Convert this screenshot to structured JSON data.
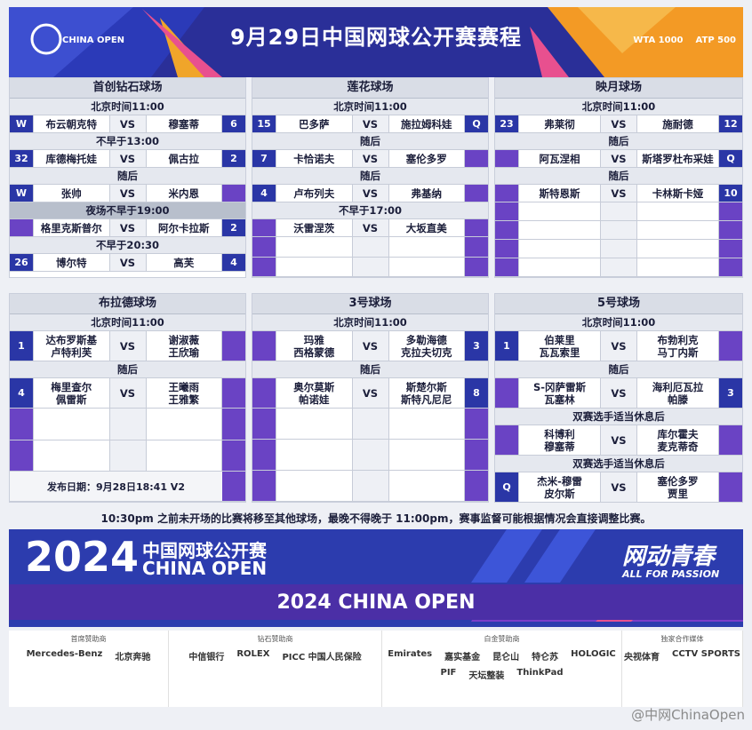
{
  "header": {
    "title": "9月29日中国网球公开赛赛程",
    "logo_left": "CHINA OPEN",
    "logo_right": [
      "WTA 1000",
      "ATP 500"
    ]
  },
  "courts": [
    {
      "name": "首创钻石球场",
      "rows": [
        {
          "label": "北京时间11:00"
        },
        {
          "seed1": "W",
          "p1": "布云朝克特",
          "vs": "VS",
          "p2": "穆塞蒂",
          "seed2": "6"
        },
        {
          "label": "不早于13:00"
        },
        {
          "seed1": "32",
          "p1": "库德梅托娃",
          "vs": "VS",
          "p2": "佩古拉",
          "seed2": "2"
        },
        {
          "label": "随后"
        },
        {
          "seed1": "W",
          "p1": "张帅",
          "vs": "VS",
          "p2": "米内恩"
        },
        {
          "label": "夜场不早于19:00",
          "night": true
        },
        {
          "p1": "格里克斯普尔",
          "vs": "VS",
          "p2": "阿尔卡拉斯",
          "seed2": "2"
        },
        {
          "label": "不早于20:30"
        },
        {
          "seed1": "26",
          "p1": "博尔特",
          "vs": "VS",
          "p2": "高芙",
          "seed2": "4"
        }
      ]
    },
    {
      "name": "莲花球场",
      "rows": [
        {
          "label": "北京时间11:00"
        },
        {
          "seed1": "15",
          "p1": "巴多萨",
          "vs": "VS",
          "p2": "施拉姆科娃",
          "seed2": "Q"
        },
        {
          "label": "随后"
        },
        {
          "seed1": "7",
          "p1": "卡恰诺夫",
          "vs": "VS",
          "p2": "塞伦多罗"
        },
        {
          "label": "随后"
        },
        {
          "seed1": "4",
          "p1": "卢布列夫",
          "vs": "VS",
          "p2": "弗基纳"
        },
        {
          "label": "不早于17:00"
        },
        {
          "p1": "沃雷涅茨",
          "vs": "VS",
          "p2": "大坂直美"
        }
      ]
    },
    {
      "name": "映月球场",
      "rows": [
        {
          "label": "北京时间11:00"
        },
        {
          "seed1": "23",
          "p1": "弗莱彻",
          "vs": "VS",
          "p2": "施耐德",
          "seed2": "12"
        },
        {
          "label": "随后"
        },
        {
          "p1": "阿瓦涅相",
          "vs": "VS",
          "p2": "斯塔罗杜布采娃",
          "seed2": "Q"
        },
        {
          "label": "随后"
        },
        {
          "p1": "斯特恩斯",
          "vs": "VS",
          "p2": "卡林斯卡娅",
          "seed2": "10"
        }
      ]
    },
    {
      "name": "布拉德球场",
      "rows": [
        {
          "label": "北京时间11:00"
        },
        {
          "seed1": "1",
          "p1": [
            "达布罗斯基",
            "卢特利芙"
          ],
          "vs": "VS",
          "p2": [
            "谢淑薇",
            "王欣瑜"
          ]
        },
        {
          "label": "随后"
        },
        {
          "seed1": "4",
          "p1": [
            "梅里查尔",
            "佩雷斯"
          ],
          "vs": "VS",
          "p2": [
            "王曦雨",
            "王雅繁"
          ]
        },
        {
          "note": "发布日期：9月28日18:41 V2"
        }
      ]
    },
    {
      "name": "3号球场",
      "rows": [
        {
          "label": "北京时间11:00"
        },
        {
          "p1": [
            "玛雅",
            "西格蒙德"
          ],
          "vs": "VS",
          "p2": [
            "多勒海德",
            "克拉夫切克"
          ],
          "seed2": "3"
        },
        {
          "label": "随后"
        },
        {
          "p1": [
            "奥尔莫斯",
            "帕诺娃"
          ],
          "vs": "VS",
          "p2": [
            "斯楚尔斯",
            "斯特凡尼尼"
          ],
          "seed2": "8"
        }
      ]
    },
    {
      "name": "5号球场",
      "rows": [
        {
          "label": "北京时间11:00"
        },
        {
          "seed1": "1",
          "p1": [
            "伯莱里",
            "瓦瓦索里"
          ],
          "vs": "VS",
          "p2": [
            "布勃利克",
            "马丁内斯"
          ]
        },
        {
          "label": "随后"
        },
        {
          "p1": [
            "S-冈萨雷斯",
            "瓦塞林"
          ],
          "vs": "VS",
          "p2": [
            "海利厄瓦拉",
            "帕滕"
          ],
          "seed2": "3"
        },
        {
          "label": "双赛选手适当休息后"
        },
        {
          "p1": [
            "科博利",
            "穆塞蒂"
          ],
          "vs": "VS",
          "p2": [
            "库尔霍夫",
            "麦克蒂奇"
          ]
        },
        {
          "label": "双赛选手适当休息后"
        },
        {
          "seed1": "Q",
          "p1": [
            "杰米-穆雷",
            "皮尔斯"
          ],
          "vs": "VS",
          "p2": [
            "塞伦多罗",
            "贾里"
          ]
        }
      ]
    }
  ],
  "notice": "10:30pm 之前未开场的比赛将移至其他球场，最晚不得晚于 11:00pm，赛事监督可能根据情况会直接调整比赛。",
  "banner": {
    "year": "2024",
    "name_cn": "中国网球公开赛",
    "name_en": "CHINA OPEN",
    "slogan": "网动青春",
    "slogan_en": "ALL FOR PASSION",
    "strip": "2024 CHINA OPEN"
  },
  "sponsors": [
    {
      "tier": "首席赞助商",
      "logos": [
        "Mercedes-Benz",
        "北京奔驰"
      ]
    },
    {
      "tier": "钻石赞助商",
      "logos": [
        "中信银行",
        "ROLEX",
        "PICC 中国人民保险"
      ]
    },
    {
      "tier": "白金赞助商",
      "logos": [
        "Emirates",
        "嘉实基金",
        "昆仑山",
        "特仑苏",
        "HOLOGIC",
        "PIF",
        "天坛整装",
        "ThinkPad"
      ]
    },
    {
      "tier": "独家合作媒体",
      "logos": [
        "央视体育",
        "CCTV SPORTS"
      ]
    }
  ],
  "watermark": "@中网ChinaOpen"
}
